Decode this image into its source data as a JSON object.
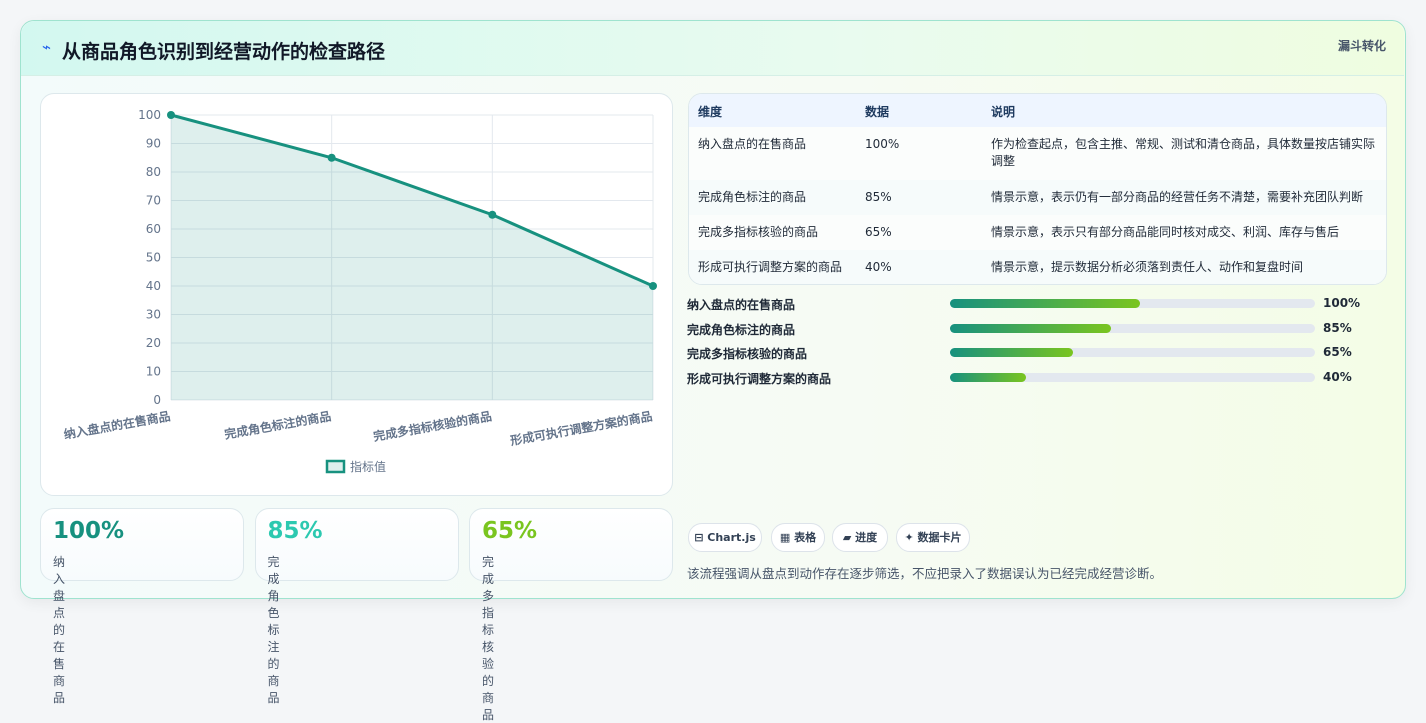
{
  "header": {
    "icon": "⌁",
    "title": "从商品角色识别到经营动作的检查路径",
    "tag": "漏斗转化"
  },
  "chart_data": {
    "type": "line",
    "categories": [
      "纳入盘点的在售商品",
      "完成角色标注的商品",
      "完成多指标核验的商品",
      "形成可执行调整方案的商品"
    ],
    "series": [
      {
        "name": "指标值",
        "color": "#17917f",
        "values": [
          100,
          85,
          65,
          40
        ]
      }
    ],
    "ylim": [
      0,
      100
    ],
    "yticks": [
      0,
      10,
      20,
      30,
      40,
      50,
      60,
      70,
      80,
      90,
      100
    ],
    "grid": true,
    "legend": "bottom"
  },
  "table": {
    "columns": [
      "维度",
      "数据",
      "说明"
    ],
    "rows": [
      [
        "纳入盘点的在售商品",
        "100%",
        "作为检查起点，包含主推、常规、测试和清仓商品，具体数量按店铺实际调整"
      ],
      [
        "完成角色标注的商品",
        "85%",
        "情景示意，表示仍有一部分商品的经营任务不清楚，需要补充团队判断"
      ],
      [
        "完成多指标核验的商品",
        "65%",
        "情景示意，表示只有部分商品能同时核对成交、利润、库存与售后"
      ],
      [
        "形成可执行调整方案的商品",
        "40%",
        "情景示意，提示数据分析必须落到责任人、动作和复盘时间"
      ]
    ]
  },
  "progress": [
    {
      "label": "纳入盘点的在售商品",
      "value": 100,
      "value_label": "100%"
    },
    {
      "label": "完成角色标注的商品",
      "value": 85,
      "value_label": "85%"
    },
    {
      "label": "完成多指标核验的商品",
      "value": 65,
      "value_label": "65%"
    },
    {
      "label": "形成可执行调整方案的商品",
      "value": 40,
      "value_label": "40%"
    }
  ],
  "cards": [
    {
      "value": "100%",
      "label": "纳入盘点的在售商品",
      "color": "#17917f"
    },
    {
      "value": "85%",
      "label": "完成角色标注的商品",
      "color": "#2cc9b0"
    },
    {
      "value": "65%",
      "label": "完成多指标核验的商品",
      "color": "#7ac51f"
    }
  ],
  "tags": [
    "⊟ Chart.js",
    "▦ 表格",
    "▰ 进度",
    "✦ 数据卡片"
  ],
  "footnote": "该流程强调从盘点到动作存在逐步筛选，不应把录入了数据误认为已经完成经营诊断。"
}
